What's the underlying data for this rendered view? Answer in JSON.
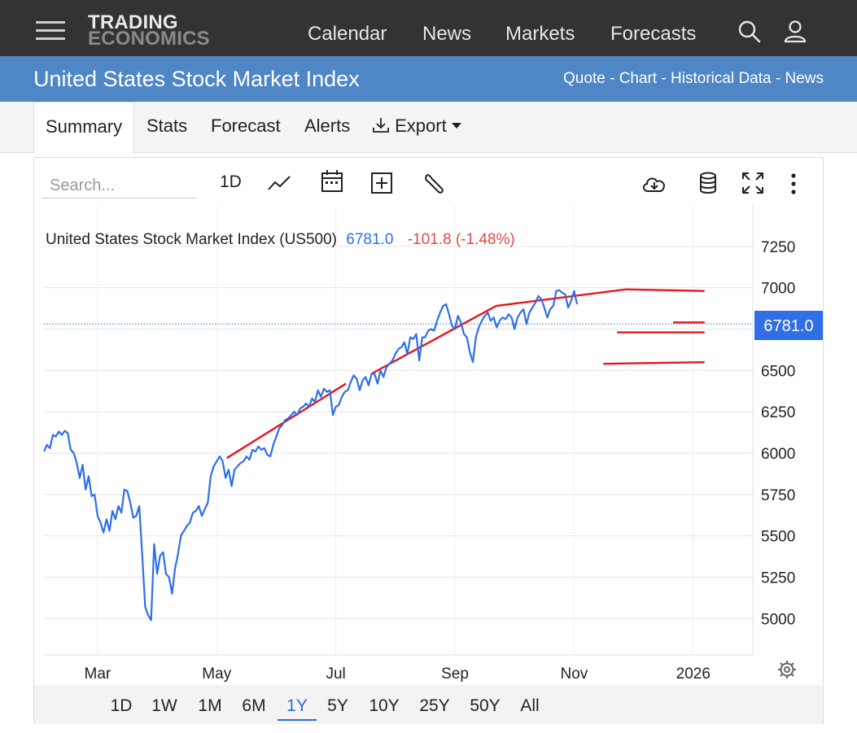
{
  "header": {
    "logo_line1": "TRADING",
    "logo_line2": "ECONOMICS",
    "nav": [
      "Calendar",
      "News",
      "Markets",
      "Forecasts"
    ],
    "icons": [
      "search-icon",
      "user-icon",
      "menu-icon"
    ]
  },
  "title_bar": {
    "title": "United States Stock Market Index",
    "links": [
      "Quote",
      "Chart",
      "Historical Data",
      "News"
    ],
    "separator": " - "
  },
  "tabs": [
    "Summary",
    "Stats",
    "Forecast",
    "Alerts",
    "Export"
  ],
  "active_tab": "Summary",
  "toolbar": {
    "search_placeholder": "Search...",
    "interval": "1D",
    "icons": [
      "line-chart-icon",
      "calendar-icon",
      "compare-add-icon",
      "wrench-icon",
      "cloud-download-icon",
      "database-icon",
      "fullscreen-icon",
      "more-vert-icon"
    ]
  },
  "legend": {
    "name": "United States Stock Market Index (US500)",
    "last": "6781.0",
    "change": "-101.8 (-1.48%)"
  },
  "price_tag": "6781.0",
  "ranges": [
    "1D",
    "1W",
    "1M",
    "6M",
    "1Y",
    "5Y",
    "10Y",
    "25Y",
    "50Y",
    "All"
  ],
  "active_range": "1Y",
  "colors": {
    "line": "#2f6fe8",
    "trend": "#e8141c",
    "negative": "#e04a4a",
    "accent": "#2f6fe8",
    "topbar": "#333333",
    "titlebar": "#4f86c6"
  },
  "chart_data": {
    "type": "line",
    "y_ticks": [
      5000,
      5250,
      5500,
      5750,
      6000,
      6250,
      6500,
      6750,
      7000,
      7250
    ],
    "y_tick_labels": [
      "5000",
      "5250",
      "5500",
      "5750",
      "6000",
      "6250",
      "6500",
      "7000",
      "7250"
    ],
    "x_labels": [
      "Mar",
      "May",
      "Jul",
      "Sep",
      "Nov",
      "2026"
    ],
    "x_label_pos": [
      1.6,
      3.6,
      5.6,
      7.6,
      9.6,
      11.6
    ],
    "x_range": [
      0.7,
      12.6
    ],
    "ylim": [
      4780,
      7500
    ],
    "grid": true,
    "series": [
      {
        "values": [
          [
            0.7,
            6010
          ],
          [
            0.75,
            6050
          ],
          [
            0.8,
            6030
          ],
          [
            0.85,
            6110
          ],
          [
            0.9,
            6100
          ],
          [
            0.95,
            6130
          ],
          [
            1.0,
            6110
          ],
          [
            1.05,
            6135
          ],
          [
            1.1,
            6120
          ],
          [
            1.15,
            6020
          ],
          [
            1.2,
            6000
          ],
          [
            1.25,
            5940
          ],
          [
            1.3,
            5850
          ],
          [
            1.35,
            5930
          ],
          [
            1.4,
            5780
          ],
          [
            1.45,
            5860
          ],
          [
            1.5,
            5740
          ],
          [
            1.55,
            5750
          ],
          [
            1.6,
            5620
          ],
          [
            1.65,
            5580
          ],
          [
            1.7,
            5520
          ],
          [
            1.75,
            5600
          ],
          [
            1.8,
            5530
          ],
          [
            1.85,
            5650
          ],
          [
            1.9,
            5600
          ],
          [
            1.95,
            5680
          ],
          [
            2.0,
            5640
          ],
          [
            2.05,
            5780
          ],
          [
            2.1,
            5770
          ],
          [
            2.15,
            5700
          ],
          [
            2.2,
            5610
          ],
          [
            2.25,
            5620
          ],
          [
            2.3,
            5680
          ],
          [
            2.35,
            5380
          ],
          [
            2.4,
            5070
          ],
          [
            2.45,
            5020
          ],
          [
            2.5,
            4990
          ],
          [
            2.55,
            5450
          ],
          [
            2.6,
            5270
          ],
          [
            2.65,
            5380
          ],
          [
            2.7,
            5400
          ],
          [
            2.75,
            5270
          ],
          [
            2.8,
            5250
          ],
          [
            2.85,
            5150
          ],
          [
            2.9,
            5300
          ],
          [
            2.95,
            5390
          ],
          [
            3.0,
            5500
          ],
          [
            3.05,
            5530
          ],
          [
            3.1,
            5560
          ],
          [
            3.15,
            5580
          ],
          [
            3.2,
            5640
          ],
          [
            3.25,
            5650
          ],
          [
            3.3,
            5680
          ],
          [
            3.35,
            5620
          ],
          [
            3.4,
            5660
          ],
          [
            3.45,
            5700
          ],
          [
            3.5,
            5860
          ],
          [
            3.55,
            5920
          ],
          [
            3.6,
            5950
          ],
          [
            3.65,
            5980
          ],
          [
            3.7,
            5950
          ],
          [
            3.75,
            5850
          ],
          [
            3.8,
            5900
          ],
          [
            3.85,
            5800
          ],
          [
            3.9,
            5900
          ],
          [
            3.95,
            5920
          ],
          [
            4.0,
            5940
          ],
          [
            4.05,
            5950
          ],
          [
            4.1,
            5980
          ],
          [
            4.15,
            5960
          ],
          [
            4.2,
            6020
          ],
          [
            4.25,
            6010
          ],
          [
            4.3,
            6040
          ],
          [
            4.35,
            6020
          ],
          [
            4.4,
            6030
          ],
          [
            4.45,
            5990
          ],
          [
            4.5,
            5980
          ],
          [
            4.55,
            6050
          ],
          [
            4.6,
            6100
          ],
          [
            4.65,
            6150
          ],
          [
            4.7,
            6170
          ],
          [
            4.75,
            6200
          ],
          [
            4.8,
            6210
          ],
          [
            4.85,
            6230
          ],
          [
            4.9,
            6250
          ],
          [
            4.95,
            6230
          ],
          [
            5.0,
            6270
          ],
          [
            5.05,
            6280
          ],
          [
            5.1,
            6300
          ],
          [
            5.15,
            6280
          ],
          [
            5.2,
            6330
          ],
          [
            5.25,
            6310
          ],
          [
            5.3,
            6380
          ],
          [
            5.35,
            6340
          ],
          [
            5.4,
            6390
          ],
          [
            5.45,
            6370
          ],
          [
            5.5,
            6380
          ],
          [
            5.55,
            6230
          ],
          [
            5.6,
            6280
          ],
          [
            5.65,
            6290
          ],
          [
            5.7,
            6340
          ],
          [
            5.75,
            6370
          ],
          [
            5.8,
            6380
          ],
          [
            5.85,
            6430
          ],
          [
            5.9,
            6470
          ],
          [
            5.95,
            6450
          ],
          [
            6.0,
            6380
          ],
          [
            6.05,
            6440
          ],
          [
            6.1,
            6460
          ],
          [
            6.15,
            6410
          ],
          [
            6.2,
            6480
          ],
          [
            6.25,
            6480
          ],
          [
            6.3,
            6420
          ],
          [
            6.35,
            6500
          ],
          [
            6.4,
            6460
          ],
          [
            6.45,
            6520
          ],
          [
            6.5,
            6540
          ],
          [
            6.55,
            6560
          ],
          [
            6.6,
            6600
          ],
          [
            6.65,
            6630
          ],
          [
            6.7,
            6640
          ],
          [
            6.75,
            6670
          ],
          [
            6.8,
            6600
          ],
          [
            6.85,
            6700
          ],
          [
            6.9,
            6690
          ],
          [
            6.95,
            6720
          ],
          [
            7.0,
            6560
          ],
          [
            7.05,
            6700
          ],
          [
            7.1,
            6700
          ],
          [
            7.15,
            6740
          ],
          [
            7.2,
            6750
          ],
          [
            7.25,
            6740
          ],
          [
            7.3,
            6800
          ],
          [
            7.35,
            6850
          ],
          [
            7.4,
            6890
          ],
          [
            7.45,
            6900
          ],
          [
            7.5,
            6840
          ],
          [
            7.55,
            6770
          ],
          [
            7.6,
            6750
          ],
          [
            7.65,
            6830
          ],
          [
            7.7,
            6790
          ],
          [
            7.75,
            6720
          ],
          [
            7.8,
            6700
          ],
          [
            7.85,
            6610
          ],
          [
            7.9,
            6550
          ],
          [
            7.95,
            6700
          ],
          [
            8.0,
            6760
          ],
          [
            8.05,
            6800
          ],
          [
            8.1,
            6830
          ],
          [
            8.15,
            6850
          ],
          [
            8.2,
            6800
          ],
          [
            8.25,
            6820
          ],
          [
            8.3,
            6760
          ],
          [
            8.35,
            6800
          ],
          [
            8.4,
            6820
          ],
          [
            8.45,
            6810
          ],
          [
            8.5,
            6840
          ],
          [
            8.55,
            6820
          ],
          [
            8.6,
            6750
          ],
          [
            8.65,
            6820
          ],
          [
            8.7,
            6850
          ],
          [
            8.75,
            6870
          ],
          [
            8.8,
            6780
          ],
          [
            8.85,
            6850
          ],
          [
            8.9,
            6880
          ],
          [
            8.95,
            6910
          ],
          [
            9.0,
            6950
          ],
          [
            9.05,
            6930
          ],
          [
            9.1,
            6880
          ],
          [
            9.15,
            6820
          ],
          [
            9.2,
            6870
          ],
          [
            9.25,
            6890
          ],
          [
            9.3,
            6980
          ],
          [
            9.35,
            6985
          ],
          [
            9.4,
            6970
          ],
          [
            9.45,
            6960
          ],
          [
            9.5,
            6880
          ],
          [
            9.55,
            6920
          ],
          [
            9.6,
            6980
          ],
          [
            9.65,
            6900
          ]
        ]
      }
    ],
    "trend_lines": [
      [
        [
          3.77,
          5970
        ],
        [
          5.77,
          6420
        ]
      ],
      [
        [
          6.2,
          6480
        ],
        [
          8.29,
          6890
        ]
      ],
      [
        [
          8.29,
          6890
        ],
        [
          10.47,
          6990
        ]
      ],
      [
        [
          10.47,
          6990
        ],
        [
          11.79,
          6980
        ]
      ],
      [
        [
          10.32,
          6730
        ],
        [
          11.79,
          6730
        ]
      ],
      [
        [
          10.09,
          6540
        ],
        [
          11.79,
          6550
        ]
      ],
      [
        [
          11.26,
          6790
        ],
        [
          11.79,
          6790
        ]
      ]
    ]
  }
}
